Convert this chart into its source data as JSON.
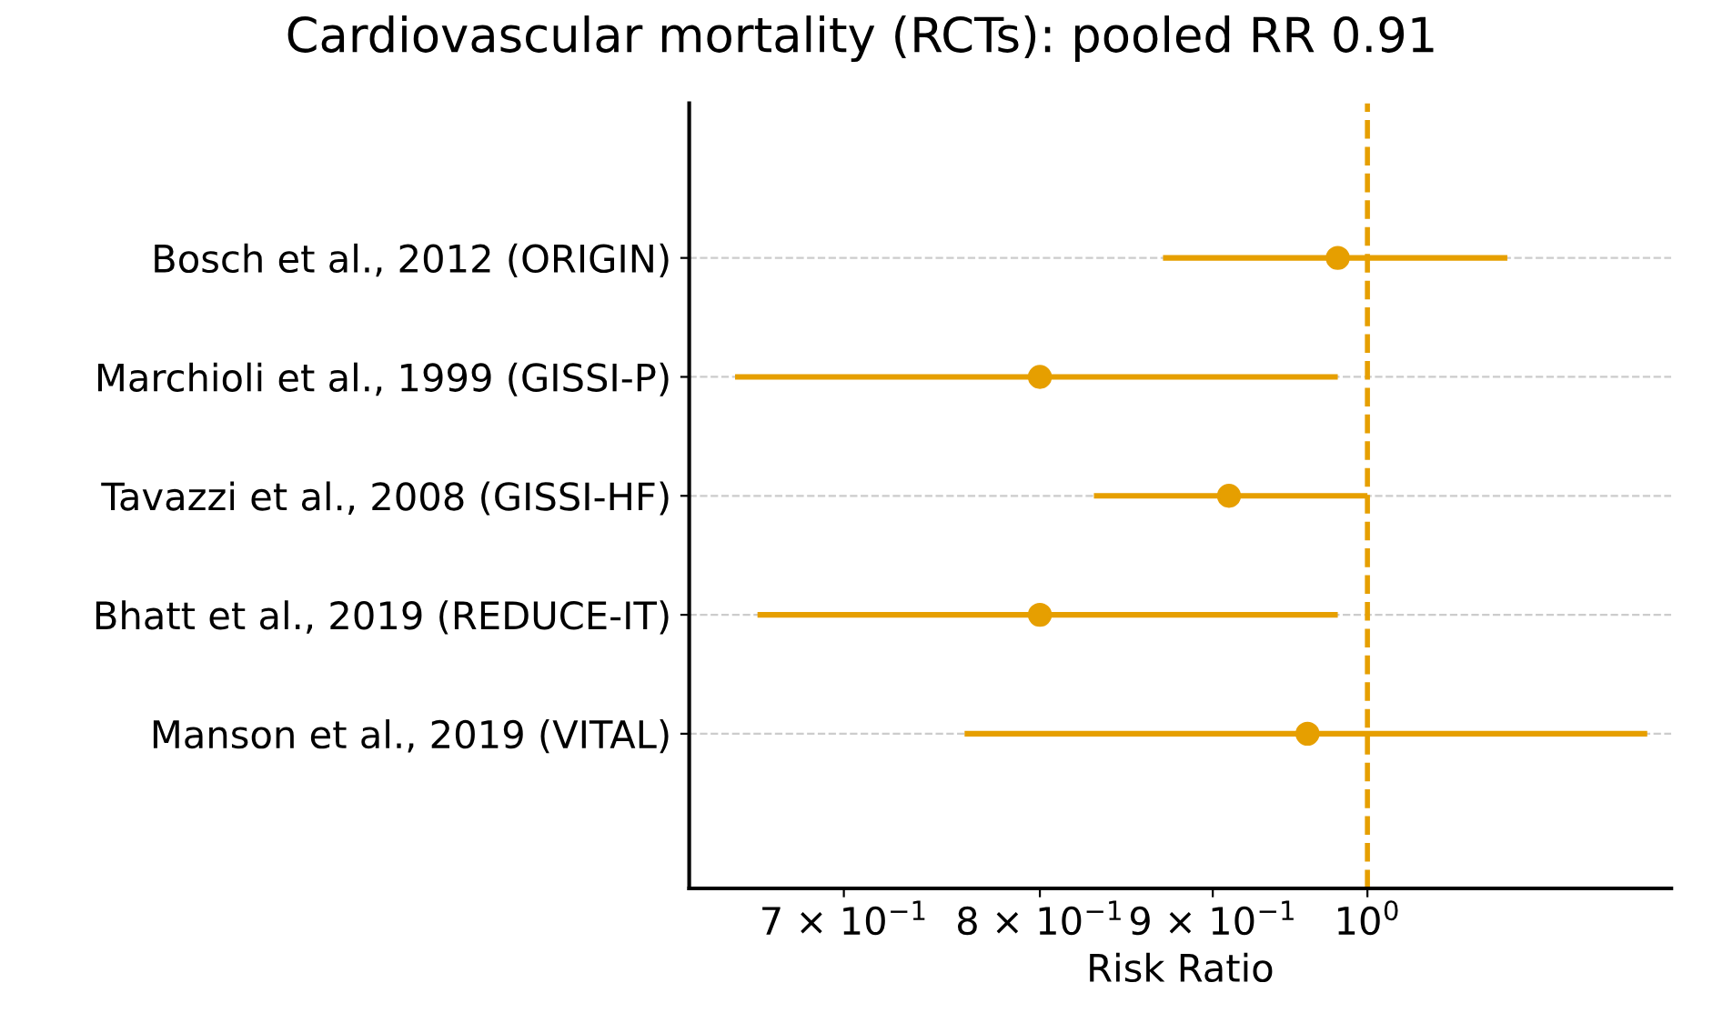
{
  "chart_data": {
    "type": "scatter",
    "title": "Cardiovascular mortality (RCTs): pooled RR 0.91",
    "xlabel": "Risk Ratio",
    "categories": [
      "Bosch et al., 2012 (ORIGIN)",
      "Marchioli et al., 1999 (GISSI-P)",
      "Tavazzi et al., 2008 (GISSI-HF)",
      "Bhatt et al., 2019 (REDUCE-IT)",
      "Manson et al., 2019 (VITAL)"
    ],
    "orientation": "horizontal",
    "log": "x",
    "series": [
      {
        "color": "#e69f00",
        "values": [
          0.98,
          0.8,
          0.91,
          0.8,
          0.96
        ],
        "errors": [
          [
            0.87,
            1.1
          ],
          [
            0.65,
            0.98
          ],
          [
            0.83,
            1.0
          ],
          [
            0.66,
            0.98
          ],
          [
            0.76,
            1.21
          ]
        ]
      }
    ],
    "xlim": [
      0.63,
      1.23
    ],
    "xticks": [
      {
        "value": 0.7,
        "label": "7 × 10$^{−1}$"
      },
      {
        "value": 0.8,
        "label": "8 × 10$^{−1}$"
      },
      {
        "value": 0.9,
        "label": "9 × 10$^{−1}$"
      },
      {
        "value": 1,
        "label": "10$^{0}$"
      }
    ],
    "ref_lines": [
      {
        "axis": "x",
        "value": 1,
        "color": "#e69f00",
        "line_style": "dashed"
      }
    ],
    "grid": "y",
    "marker": "circle"
  }
}
